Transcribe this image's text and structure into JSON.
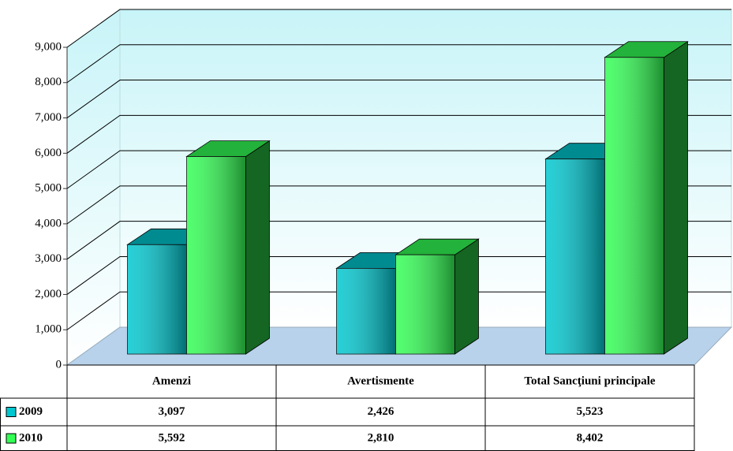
{
  "chart_data": {
    "type": "bar3d",
    "categories": [
      "Amenzi",
      "Avertismente",
      "Total Sancţiuni principale"
    ],
    "series": [
      {
        "name": "2009",
        "color": "#00c8d0",
        "values": [
          3097,
          2426,
          5523
        ],
        "value_labels": [
          "3,097",
          "2,426",
          "5,523"
        ]
      },
      {
        "name": "2010",
        "color": "#33ff55",
        "values": [
          5592,
          2810,
          8402
        ],
        "value_labels": [
          "5,592",
          "2,810",
          "8,402"
        ]
      }
    ],
    "ylim": [
      0,
      9000
    ],
    "yticks": [
      0,
      {
        "value": 1000,
        "label": "1,000"
      },
      {
        "value": 2000,
        "label": "2,000"
      },
      {
        "value": 3000,
        "label": "3,000"
      },
      {
        "value": 4000,
        "label": "4,000"
      },
      {
        "value": 5000,
        "label": "5,000"
      },
      {
        "value": 6000,
        "label": "6,000"
      },
      {
        "value": 7000,
        "label": "7,000"
      },
      {
        "value": 8000,
        "label": "8,000"
      },
      {
        "value": 9000,
        "label": "9,000"
      }
    ],
    "grid": true
  }
}
